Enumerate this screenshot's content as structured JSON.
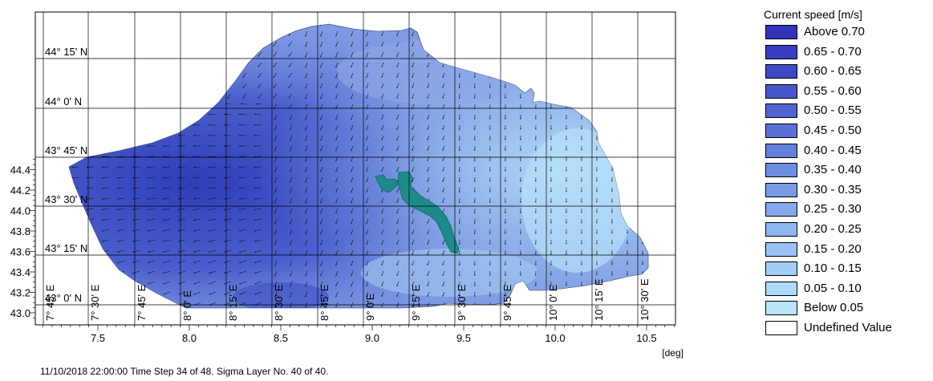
{
  "map": {
    "x_ticks": [
      "7.5",
      "8.0",
      "8.5",
      "9.0",
      "9.5",
      "10.0",
      "10.5"
    ],
    "y_ticks": [
      "44.4",
      "44.2",
      "44.0",
      "43.8",
      "43.6",
      "43.4",
      "43.2",
      "43.0"
    ],
    "x_unit": "[deg]",
    "lat_labels": [
      "44° 15' N",
      "44° 0' N",
      "43° 45' N",
      "43° 30' N",
      "43° 15' N",
      "43° 0' N"
    ],
    "lon_labels": [
      "7° 45' E",
      "7° 30' E",
      "7° 45' E",
      "8° 0' E",
      "8° 15' E",
      "8° 30' E",
      "8° 45' E",
      "9° 0'E",
      "9° 15' E",
      "9° 30' E",
      "9° 45' E",
      "10° 0' E",
      "10° 15' E",
      "10° 30' E"
    ],
    "colors": {
      "sea_deep": "#3a4cc4",
      "sea_mid": "#6f86dc",
      "sea_light": "#a9d2f6",
      "blob": "#1e8a8a"
    }
  },
  "legend": {
    "title": "Current speed [m/s]",
    "items": [
      {
        "label": "Above 0.70",
        "color": "#3333bb"
      },
      {
        "label": "0.65 - 0.70",
        "color": "#3a3dc1"
      },
      {
        "label": "0.60 - 0.65",
        "color": "#4048c6"
      },
      {
        "label": "0.55 - 0.60",
        "color": "#4856cc"
      },
      {
        "label": "0.50 - 0.55",
        "color": "#5064d2"
      },
      {
        "label": "0.45 - 0.50",
        "color": "#5a72d8"
      },
      {
        "label": "0.40 - 0.45",
        "color": "#6380dc"
      },
      {
        "label": "0.35 - 0.40",
        "color": "#6d8ee2"
      },
      {
        "label": "0.30 - 0.35",
        "color": "#789be6"
      },
      {
        "label": "0.25 - 0.30",
        "color": "#84a8ea"
      },
      {
        "label": "0.20 - 0.25",
        "color": "#8fb5ee"
      },
      {
        "label": "0.15 - 0.20",
        "color": "#9ac2f2"
      },
      {
        "label": "0.10 - 0.15",
        "color": "#a4cdf6"
      },
      {
        "label": "0.05 - 0.10",
        "color": "#addaf8"
      },
      {
        "label": "Below 0.05",
        "color": "#b8e4fb"
      },
      {
        "label": "Undefined Value",
        "color": "#ffffff"
      }
    ]
  },
  "footer": "11/10/2018 22:00:00  Time Step 34 of 48. Sigma Layer No. 40 of 40."
}
